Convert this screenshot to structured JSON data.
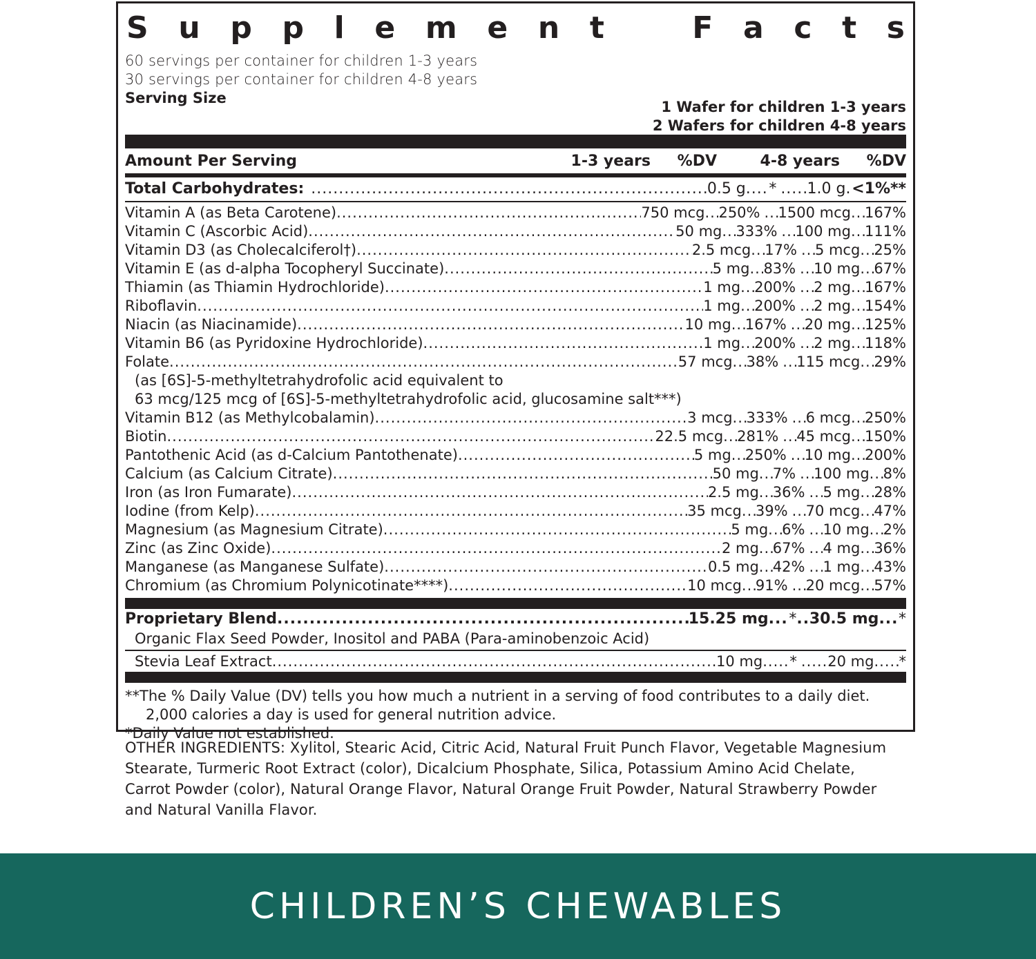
{
  "label": {
    "title_letters": [
      "S",
      "u",
      "p",
      "p",
      "l",
      "e",
      "m",
      "e",
      "n",
      "t",
      "F",
      "a",
      "c",
      "t",
      "s"
    ],
    "title": "Supplement Facts",
    "servings_per_container": [
      "60 servings per container for children 1-3 years",
      "30 servings per container for children 4-8 years"
    ],
    "serving_size_label": "Serving Size",
    "serving_size_values": [
      "1 Wafer for children 1-3 years",
      "2 Wafers for children 4-8 years"
    ],
    "columns": {
      "amount_per_serving": "Amount Per Serving",
      "age_1_3": "1-3 years",
      "dv_1": "%DV",
      "age_4_8": "4-8 years",
      "dv_2": "%DV"
    },
    "total_carbohydrates": {
      "name": "Total Carbohydrates:",
      "amt1": "0.5 g",
      "dv1": "*",
      "amt2": "1.0 g",
      "dv2": "<1%**"
    },
    "nutrients": [
      {
        "name": "Vitamin A (as Beta Carotene)",
        "amt1": "750 mcg",
        "dv1": "250%",
        "amt2": "1500 mcg",
        "dv2": "167%"
      },
      {
        "name": "Vitamin C (Ascorbic Acid)",
        "amt1": "50 mg",
        "dv1": "333%",
        "amt2": "100 mg",
        "dv2": "111%"
      },
      {
        "name": "Vitamin D3 (as Cholecalciferol†)",
        "amt1": "2.5 mcg",
        "dv1": "17%",
        "amt2": "5 mcg",
        "dv2": "25%"
      },
      {
        "name": "Vitamin E (as d-alpha Tocopheryl Succinate)",
        "amt1": "5 mg",
        "dv1": "83%",
        "amt2": "10 mg",
        "dv2": "67%"
      },
      {
        "name": "Thiamin (as Thiamin Hydrochloride)",
        "amt1": "1 mg",
        "dv1": "200%",
        "amt2": "2 mg",
        "dv2": "167%"
      },
      {
        "name": "Riboflavin",
        "amt1": "1 mg",
        "dv1": "200%",
        "amt2": "2 mg",
        "dv2": "154%"
      },
      {
        "name": "Niacin (as Niacinamide)",
        "amt1": "10 mg",
        "dv1": "167%",
        "amt2": "20 mg",
        "dv2": "125%"
      },
      {
        "name": "Vitamin B6 (as Pyridoxine Hydrochloride)",
        "amt1": "1 mg",
        "dv1": "200%",
        "amt2": "2 mg",
        "dv2": "118%"
      },
      {
        "name": "Folate",
        "amt1": "57 mcg",
        "dv1": "38%",
        "amt2": "115 mcg",
        "dv2": "29%"
      }
    ],
    "folate_note": [
      "(as [6S]-5-methyltetrahydrofolic acid equivalent to",
      "63 mcg/125 mcg of [6S]-5-methyltetrahydrofolic acid, glucosamine salt***)"
    ],
    "nutrients_2": [
      {
        "name": "Vitamin B12 (as Methylcobalamin)",
        "amt1": "3 mcg",
        "dv1": "333%",
        "amt2": "6 mcg",
        "dv2": "250%"
      },
      {
        "name": "Biotin",
        "amt1": "22.5 mcg",
        "dv1": "281%",
        "amt2": "45 mcg",
        "dv2": "150%"
      },
      {
        "name": "Pantothenic Acid (as d-Calcium Pantothenate)",
        "amt1": "5 mg",
        "dv1": "250%",
        "amt2": "10 mg",
        "dv2": "200%"
      },
      {
        "name": "Calcium (as Calcium Citrate)",
        "amt1": "50 mg",
        "dv1": "7%",
        "amt2": "100 mg",
        "dv2": "8%"
      },
      {
        "name": "Iron (as Iron Fumarate)",
        "amt1": "2.5 mg",
        "dv1": "36%",
        "amt2": "5 mg",
        "dv2": "28%"
      },
      {
        "name": "Iodine (from Kelp)",
        "amt1": "35 mcg",
        "dv1": "39%",
        "amt2": "70 mcg",
        "dv2": "47%"
      },
      {
        "name": "Magnesium (as Magnesium Citrate)",
        "amt1": "5 mg",
        "dv1": "6%",
        "amt2": "10 mg",
        "dv2": "2%"
      },
      {
        "name": "Zinc (as Zinc Oxide)",
        "amt1": "2 mg",
        "dv1": "67%",
        "amt2": "4 mg",
        "dv2": "36%"
      },
      {
        "name": "Manganese (as Manganese Sulfate)",
        "amt1": "0.5 mg",
        "dv1": "42%",
        "amt2": "1 mg",
        "dv2": "43%"
      },
      {
        "name": "Chromium (as Chromium Polynicotinate****)",
        "amt1": "10 mcg",
        "dv1": "91%",
        "amt2": "20 mcg",
        "dv2": "57%"
      }
    ],
    "proprietary_blend": {
      "name": "Proprietary Blend",
      "amt1": "15.25 mg",
      "dv1": "*",
      "amt2": "30.5 mg",
      "dv2": "*",
      "ingredients": "Organic Flax Seed Powder, Inositol and PABA (Para-aminobenzoic Acid)"
    },
    "stevia": {
      "name": "Stevia Leaf Extract",
      "amt1": "10 mg",
      "dv1": "*",
      "amt2": "20 mg",
      "dv2": "*"
    },
    "footnotes": [
      "**The % Daily Value (DV) tells you how much a nutrient in a serving of food contributes to a daily diet.",
      "2,000 calories a day is used for general nutrition advice.",
      "*Daily Value not established."
    ]
  },
  "other_ingredients": "OTHER INGREDIENTS: Xylitol, Stearic Acid, Citric Acid, Natural Fruit Punch Flavor, Vegetable Magnesium Stearate, Turmeric Root Extract (color), Dicalcium Phosphate, Silica, Potassium Amino Acid Chelate, Carrot Powder (color), Natural Orange Flavor, Natural Orange Fruit Powder, Natural Strawberry Powder and Natural Vanilla Flavor.",
  "banner": {
    "text": "CHILDREN’S CHEWABLES",
    "background_color": "#16675d",
    "text_color": "#ffffff"
  },
  "colors": {
    "ink": "#231f20",
    "background": "#ffffff"
  }
}
